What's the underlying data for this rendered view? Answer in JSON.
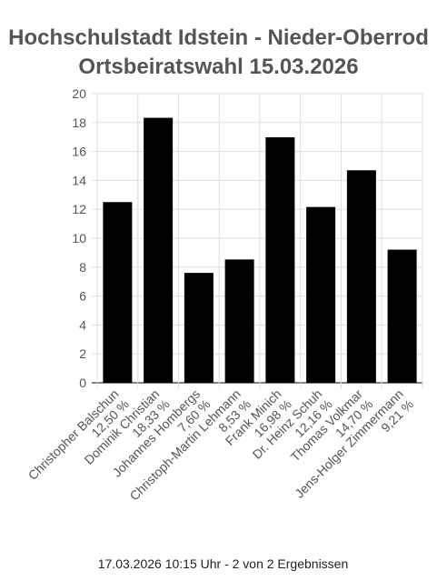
{
  "chart_data": {
    "type": "bar",
    "title": [
      "Hochschulstadt Idstein - Nieder-Oberrod",
      "Ortsbeiratswahl 15.03.2026"
    ],
    "categories": [
      [
        "Christopher Balschun",
        "12,50 %"
      ],
      [
        "Dominik Christian",
        "18,33 %"
      ],
      [
        "Johannes Hombergs",
        "7,60 %"
      ],
      [
        "Christoph-Martin Lehmann",
        "8,53 %"
      ],
      [
        "Frank Minich",
        "16,98 %"
      ],
      [
        "Dr. Heinz Schuh",
        "12,16 %"
      ],
      [
        "Thomas Volkmar",
        "14,70 %"
      ],
      [
        "Jens-Holger Zimmermann",
        "9,21 %"
      ]
    ],
    "values": [
      12.5,
      18.33,
      7.6,
      8.53,
      16.98,
      12.16,
      14.7,
      9.21
    ],
    "ylim": [
      0,
      20
    ],
    "yticks": [
      0,
      2,
      4,
      6,
      8,
      10,
      12,
      14,
      16,
      18,
      20
    ],
    "grid": true,
    "bar_color": "#000000",
    "grid_color": "#dddddd"
  },
  "footer": "17.03.2026 10:15 Uhr - 2 von 2 Ergebnissen"
}
